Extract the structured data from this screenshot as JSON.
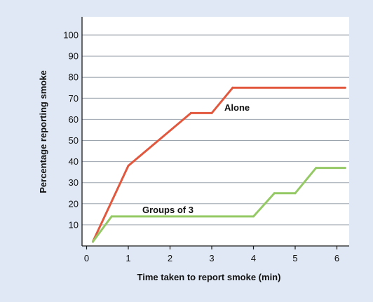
{
  "chart_data": {
    "type": "line",
    "title": "",
    "xlabel": "Time taken to report smoke (min)",
    "ylabel": "Percentage reporting smoke",
    "xlim": [
      0,
      6.25
    ],
    "ylim": [
      0,
      108
    ],
    "x_ticks": [
      "0",
      "1",
      "2",
      "3",
      "4",
      "5",
      "6"
    ],
    "y_ticks": [
      "10",
      "20",
      "30",
      "40",
      "50",
      "60",
      "70",
      "80",
      "90",
      "100"
    ],
    "grid": "horizontal",
    "legend": "none (series labeled directly on the lines)",
    "series": [
      {
        "name": "Alone",
        "color": "#e2583e",
        "x": [
          0.15,
          1.0,
          2.5,
          3.0,
          3.5,
          6.2
        ],
        "y": [
          2,
          38,
          63,
          63,
          75,
          75
        ]
      },
      {
        "name": "Groups of 3",
        "color": "#94c965",
        "x": [
          0.15,
          0.6,
          4.0,
          4.5,
          5.0,
          5.5,
          6.2
        ],
        "y": [
          2,
          14,
          14,
          25,
          25,
          37,
          37
        ]
      }
    ]
  },
  "colors": {
    "background": "#dfe8f4",
    "plot_background": "#ffffff",
    "gridline": "#9ba3ad",
    "axis": "#1a1a1a"
  }
}
